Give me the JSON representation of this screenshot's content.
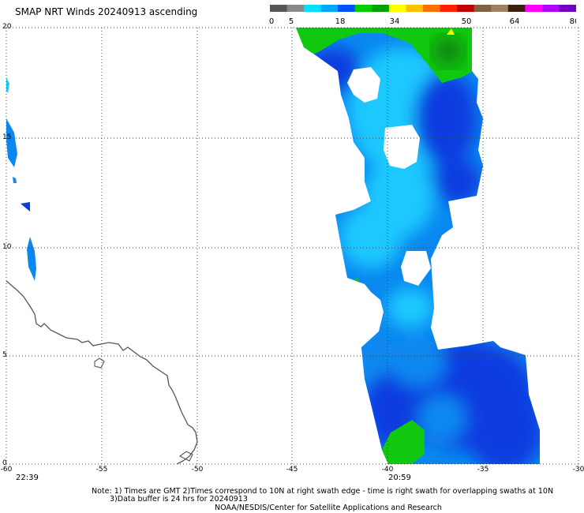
{
  "title": "SMAP NRT Winds 20240913 ascending",
  "colorbar": {
    "tick_labels": [
      "0",
      "5",
      "18",
      "34",
      "50",
      "64",
      "80"
    ],
    "segments": [
      "#555555",
      "#888888",
      "#00e0ff",
      "#00a8ff",
      "#0050ff",
      "#00d000",
      "#00a000",
      "#ffff00",
      "#ffc000",
      "#ff7000",
      "#ff2000",
      "#c00000",
      "#806040",
      "#a08060",
      "#3a2010",
      "#ff00ff",
      "#b000ff",
      "#7000c0"
    ]
  },
  "map": {
    "lat_labels": [
      "20",
      "15",
      "10",
      "5",
      "0"
    ],
    "lon_labels": [
      "-60",
      "-55",
      "-50",
      "-45",
      "-40",
      "-35",
      "-30"
    ],
    "swath_times": [
      "22:39",
      "20:59"
    ],
    "colors": {
      "coast": "#555555",
      "grid": "#444444",
      "wind_light": "#1ac8ff",
      "wind_mid": "#0a88f0",
      "wind_dark": "#0a3ee0",
      "wind_green": "#10c810",
      "wind_dark_green": "#0a8a10",
      "wind_yellow": "#ffee00"
    }
  },
  "notes": {
    "line1": "Note: 1) Times are GMT 2)Times correspond to 10N at right swath edge - time is right swath for overlapping swaths at 10N",
    "line2": "3)Data buffer is 24 hrs for 20240913",
    "credit": "NOAA/NESDIS/Center for Satellite Applications and Research"
  }
}
